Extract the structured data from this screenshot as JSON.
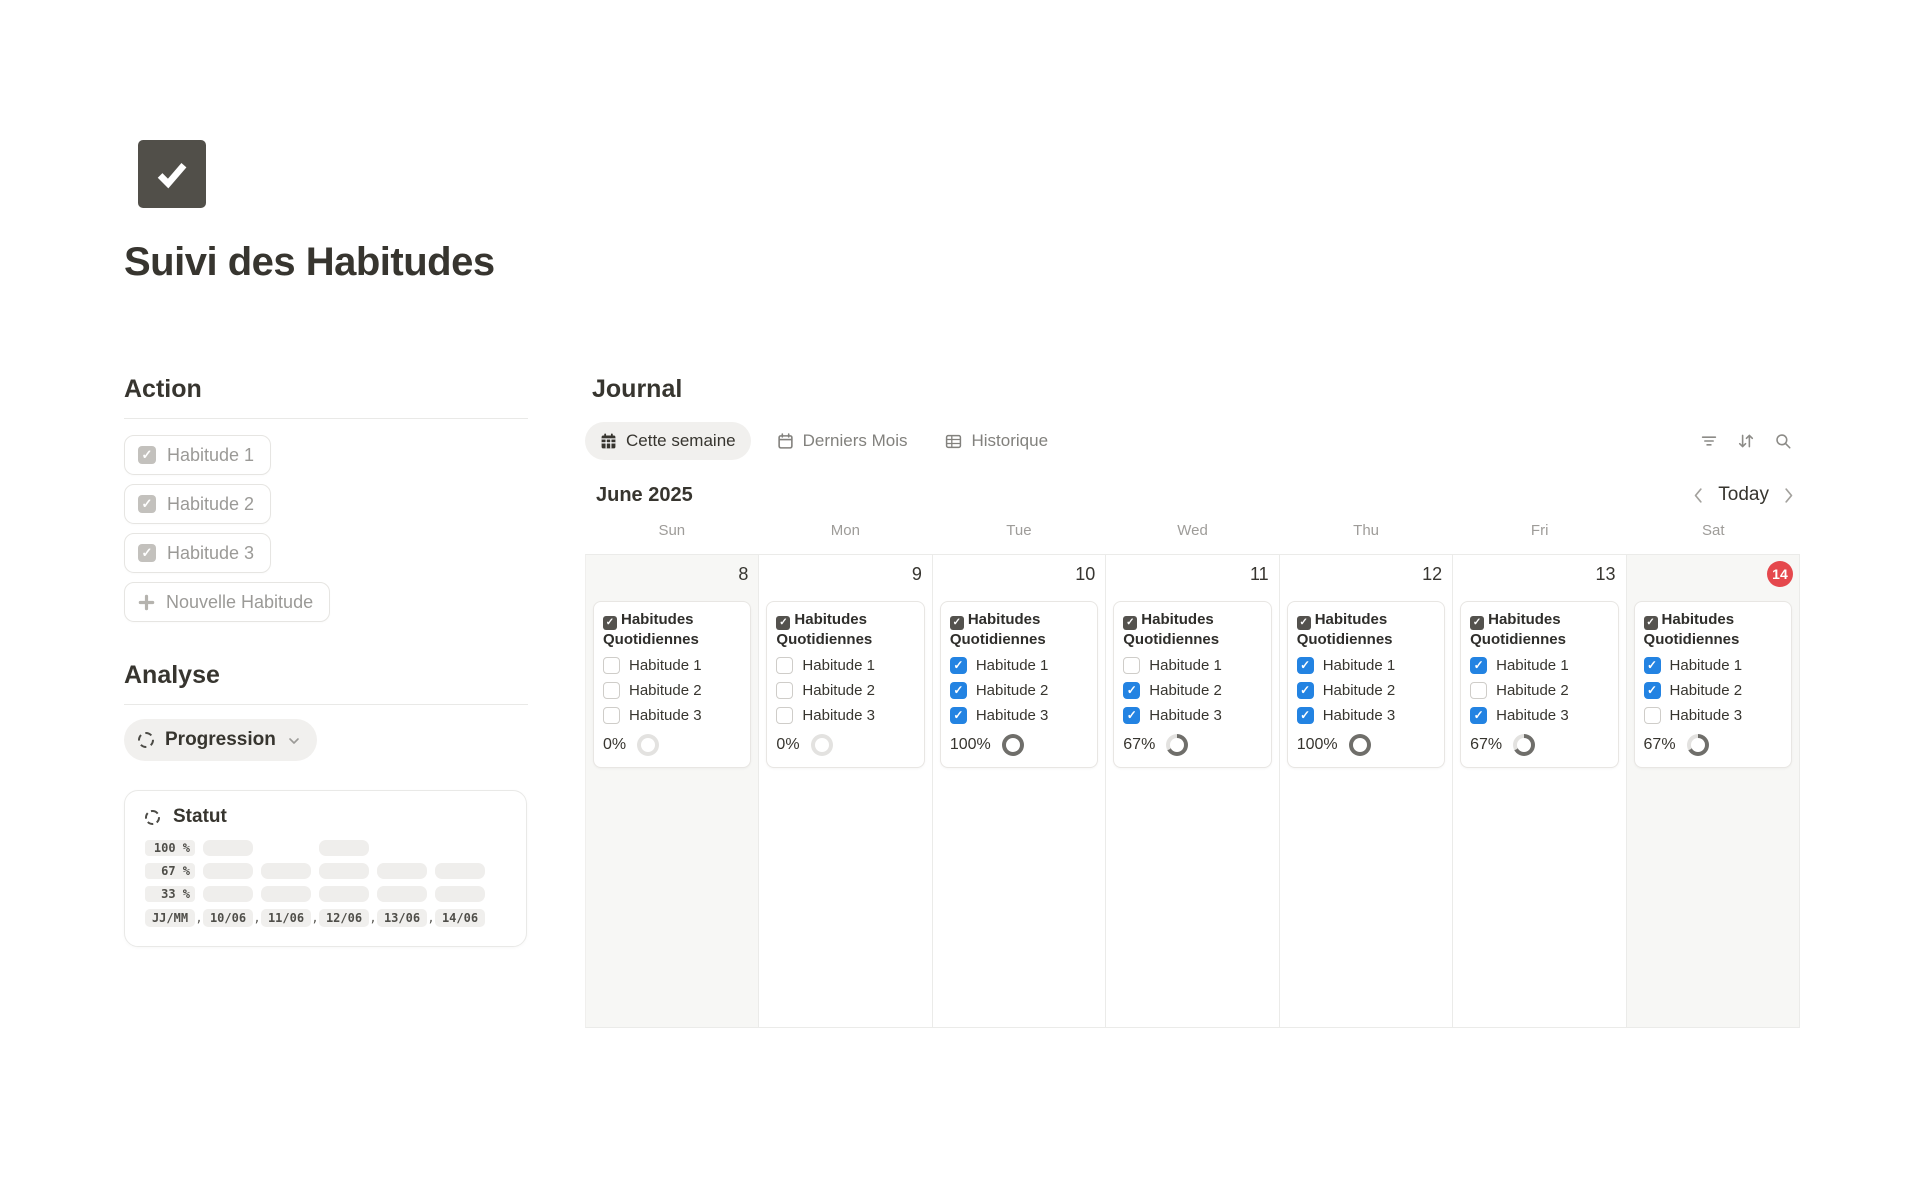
{
  "page": {
    "title": "Suivi des Habitudes",
    "icon": "check",
    "icon_bg": "#514f49"
  },
  "action": {
    "heading": "Action",
    "habit_buttons": [
      "Habitude 1",
      "Habitude 2",
      "Habitude 3"
    ],
    "new_habit_label": "Nouvelle Habitude"
  },
  "analyse": {
    "heading": "Analyse",
    "view_selector": "Progression"
  },
  "statut": {
    "title": "Statut",
    "chart_data": {
      "type": "bar",
      "categories": [
        "10/06",
        "11/06",
        "12/06",
        "13/06",
        "14/06"
      ],
      "values": [
        100,
        67,
        100,
        67,
        67
      ],
      "y_tick_labels": [
        "100 %",
        "67 %",
        "33 %"
      ],
      "y_tick_values": [
        100,
        67,
        33
      ],
      "x_axis_label": "JJ/MM",
      "separator": ",",
      "ylim": [
        0,
        100
      ],
      "legend": "none"
    }
  },
  "journal": {
    "heading": "Journal",
    "tabs": [
      {
        "label": "Cette semaine",
        "icon": "calendar-filled",
        "active": true
      },
      {
        "label": "Derniers Mois",
        "icon": "calendar-outline",
        "active": false
      },
      {
        "label": "Historique",
        "icon": "table",
        "active": false
      }
    ],
    "toolbar": {
      "icons": [
        "filter",
        "sort",
        "search"
      ]
    },
    "calendar": {
      "month_label": "June 2025",
      "today_label": "Today",
      "weekdays": [
        "Sun",
        "Mon",
        "Tue",
        "Wed",
        "Thu",
        "Fri",
        "Sat"
      ],
      "card_title": "Habitudes Quotidiennes",
      "days": [
        {
          "number": "8",
          "weekend": true,
          "today": false,
          "habits": [
            {
              "label": "Habitude 1",
              "checked": false
            },
            {
              "label": "Habitude 2",
              "checked": false
            },
            {
              "label": "Habitude 3",
              "checked": false
            }
          ],
          "progress_label": "0%",
          "progress_value": 0
        },
        {
          "number": "9",
          "weekend": false,
          "today": false,
          "habits": [
            {
              "label": "Habitude 1",
              "checked": false
            },
            {
              "label": "Habitude 2",
              "checked": false
            },
            {
              "label": "Habitude 3",
              "checked": false
            }
          ],
          "progress_label": "0%",
          "progress_value": 0
        },
        {
          "number": "10",
          "weekend": false,
          "today": false,
          "habits": [
            {
              "label": "Habitude 1",
              "checked": true
            },
            {
              "label": "Habitude 2",
              "checked": true
            },
            {
              "label": "Habitude 3",
              "checked": true
            }
          ],
          "progress_label": "100%",
          "progress_value": 100
        },
        {
          "number": "11",
          "weekend": false,
          "today": false,
          "habits": [
            {
              "label": "Habitude 1",
              "checked": false
            },
            {
              "label": "Habitude 2",
              "checked": true
            },
            {
              "label": "Habitude 3",
              "checked": true
            }
          ],
          "progress_label": "67%",
          "progress_value": 67
        },
        {
          "number": "12",
          "weekend": false,
          "today": false,
          "habits": [
            {
              "label": "Habitude 1",
              "checked": true
            },
            {
              "label": "Habitude 2",
              "checked": true
            },
            {
              "label": "Habitude 3",
              "checked": true
            }
          ],
          "progress_label": "100%",
          "progress_value": 100
        },
        {
          "number": "13",
          "weekend": false,
          "today": false,
          "habits": [
            {
              "label": "Habitude 1",
              "checked": true
            },
            {
              "label": "Habitude 2",
              "checked": false
            },
            {
              "label": "Habitude 3",
              "checked": true
            }
          ],
          "progress_label": "67%",
          "progress_value": 67
        },
        {
          "number": "14",
          "weekend": true,
          "today": true,
          "habits": [
            {
              "label": "Habitude 1",
              "checked": true
            },
            {
              "label": "Habitude 2",
              "checked": true
            },
            {
              "label": "Habitude 3",
              "checked": false
            }
          ],
          "progress_label": "67%",
          "progress_value": 67
        }
      ]
    }
  },
  "colors": {
    "checkbox_accent": "#2383e2",
    "today_badge": "#e5484d",
    "ring_filled": "#6f6e6a",
    "ring_empty": "#e3e2e0"
  }
}
